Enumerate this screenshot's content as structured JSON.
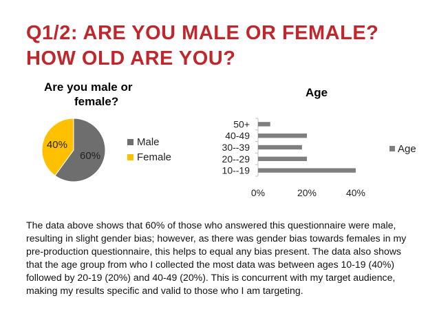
{
  "title": "Q1/2: ARE YOU MALE OR FEMALE? HOW OLD ARE YOU?",
  "colors": {
    "title": "#c0272d",
    "male": "#6e6e6e",
    "female": "#ffc000",
    "bar": "#7f7f7f"
  },
  "chart_data": [
    {
      "type": "pie",
      "title_line1": "Are  you male or",
      "title_line2": "female?",
      "categories": [
        "Male",
        "Female"
      ],
      "values": [
        60,
        40
      ],
      "labels": [
        "60%",
        "40%"
      ],
      "legend": "right"
    },
    {
      "type": "bar",
      "orientation": "horizontal",
      "title": "Age",
      "categories": [
        "10--19",
        "20--29",
        "30--39",
        "40-49",
        "50+"
      ],
      "series": [
        {
          "name": "Age",
          "values": [
            40,
            20,
            18,
            20,
            5
          ]
        }
      ],
      "xticks": [
        "0%",
        "20%",
        "40%"
      ],
      "xlim": [
        0,
        40
      ],
      "legend": "right"
    }
  ],
  "body_text": "The data above shows that 60% of those who answered this questionnaire were male, resulting in slight gender bias; however, as there was gender bias towards females in my pre-production questionnaire, this helps to equal any bias present. The data also shows that the age group from who I collected the most data was between ages 10-19 (40%) followed by 20-19 (20%) and 40-49 (20%). This is concurrent with my target audience, making my results specific and valid to those who I am targeting."
}
